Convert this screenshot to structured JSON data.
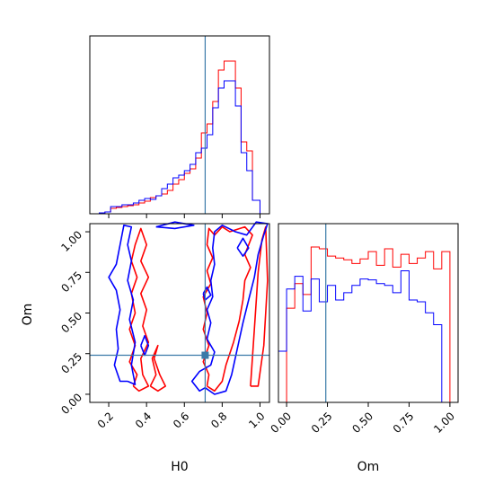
{
  "colors": {
    "series_1": "#ff0000",
    "series_2": "#0000ff",
    "truth": "#3a7aa8"
  },
  "chart_data": {
    "type": "corner",
    "parameters": [
      "H0",
      "Om"
    ],
    "truth": {
      "H0": 0.71,
      "Om": 0.24
    },
    "axes": {
      "H0": {
        "xlim": [
          0.1,
          1.05
        ],
        "ticks": [
          0.2,
          0.4,
          0.6,
          0.8,
          1.0
        ],
        "tick_labels": [
          "0.2",
          "0.4",
          "0.6",
          "0.8",
          "1.0"
        ],
        "xlabel": "H0"
      },
      "Om": {
        "lim": [
          -0.05,
          1.05
        ],
        "ticks": [
          0.0,
          0.25,
          0.5,
          0.75,
          1.0
        ],
        "tick_labels": [
          "0.00",
          "0.25",
          "0.50",
          "0.75",
          "1.00"
        ],
        "xlabel": "Om",
        "ylabel": "Om"
      }
    },
    "histograms": {
      "H0": {
        "bin_edges": [
          0.1,
          0.15,
          0.18,
          0.21,
          0.24,
          0.27,
          0.3,
          0.33,
          0.36,
          0.39,
          0.42,
          0.45,
          0.48,
          0.51,
          0.54,
          0.57,
          0.6,
          0.63,
          0.66,
          0.69,
          0.72,
          0.75,
          0.78,
          0.81,
          0.84,
          0.87,
          0.9,
          0.93,
          0.96,
          1.0,
          1.05
        ],
        "series": [
          {
            "name": "",
            "color": "red",
            "values": [
              0,
              1,
              2,
              6,
              7,
              8,
              9,
              10,
              12,
              14,
              18,
              20,
              22,
              26,
              33,
              38,
              45,
              50,
              62,
              90,
              100,
              125,
              160,
              170,
              170,
              140,
              80,
              70,
              15,
              0
            ]
          },
          {
            "name": "",
            "color": "blue",
            "values": [
              0,
              1,
              2,
              8,
              8,
              10,
              10,
              12,
              15,
              17,
              16,
              20,
              28,
              33,
              40,
              43,
              48,
              55,
              68,
              73,
              88,
              118,
              140,
              148,
              148,
              120,
              68,
              48,
              15,
              0
            ]
          }
        ]
      },
      "Om": {
        "bin_edges": [
          -0.05,
          0.0,
          0.05,
          0.1,
          0.15,
          0.2,
          0.25,
          0.3,
          0.35,
          0.4,
          0.45,
          0.5,
          0.55,
          0.6,
          0.65,
          0.7,
          0.75,
          0.8,
          0.85,
          0.9,
          0.95,
          1.0,
          1.05
        ],
        "series": [
          {
            "name": "",
            "color": "red",
            "values": [
              0,
              103,
              130,
              118,
              170,
              168,
              160,
              158,
              156,
              152,
              157,
              165,
              150,
              168,
              148,
              162,
              152,
              158,
              165,
              146,
              165,
              0
            ]
          },
          {
            "name": "",
            "color": "blue",
            "values": [
              56,
              124,
              138,
              100,
              135,
              110,
              128,
              112,
              120,
              128,
              135,
              134,
              130,
              128,
              120,
              144,
              112,
              110,
              98,
              85,
              0,
              0
            ]
          }
        ]
      }
    },
    "contours_H0_Om": [
      {
        "color": "red",
        "points": [
          [
            0.33,
            0.05
          ],
          [
            0.36,
            0.02
          ],
          [
            0.41,
            0.05
          ],
          [
            0.38,
            0.12
          ],
          [
            0.37,
            0.22
          ],
          [
            0.41,
            0.32
          ],
          [
            0.38,
            0.42
          ],
          [
            0.4,
            0.52
          ],
          [
            0.37,
            0.62
          ],
          [
            0.41,
            0.72
          ],
          [
            0.37,
            0.82
          ],
          [
            0.4,
            0.92
          ],
          [
            0.37,
            1.02
          ],
          [
            0.34,
            0.92
          ],
          [
            0.32,
            0.82
          ],
          [
            0.35,
            0.72
          ],
          [
            0.32,
            0.62
          ],
          [
            0.34,
            0.5
          ],
          [
            0.31,
            0.4
          ],
          [
            0.34,
            0.3
          ],
          [
            0.31,
            0.2
          ],
          [
            0.35,
            0.12
          ],
          [
            0.33,
            0.05
          ]
        ]
      },
      {
        "color": "red",
        "points": [
          [
            0.42,
            0.05
          ],
          [
            0.46,
            0.02
          ],
          [
            0.5,
            0.05
          ],
          [
            0.47,
            0.12
          ],
          [
            0.44,
            0.22
          ],
          [
            0.46,
            0.3
          ],
          [
            0.43,
            0.22
          ],
          [
            0.45,
            0.12
          ],
          [
            0.42,
            0.05
          ]
        ]
      },
      {
        "color": "red",
        "points": [
          [
            0.72,
            0.05
          ],
          [
            0.76,
            0.02
          ],
          [
            0.8,
            0.08
          ],
          [
            0.82,
            0.18
          ],
          [
            0.86,
            0.32
          ],
          [
            0.89,
            0.45
          ],
          [
            0.91,
            0.58
          ],
          [
            0.92,
            0.7
          ],
          [
            0.95,
            0.78
          ],
          [
            0.92,
            0.86
          ],
          [
            0.96,
            0.98
          ],
          [
            0.92,
            1.03
          ],
          [
            0.84,
            1.0
          ],
          [
            0.8,
            1.03
          ],
          [
            0.76,
            0.98
          ],
          [
            0.73,
            1.02
          ],
          [
            0.72,
            0.92
          ],
          [
            0.75,
            0.84
          ],
          [
            0.72,
            0.76
          ],
          [
            0.74,
            0.68
          ],
          [
            0.7,
            0.6
          ],
          [
            0.72,
            0.5
          ],
          [
            0.7,
            0.4
          ],
          [
            0.73,
            0.3
          ],
          [
            0.7,
            0.2
          ],
          [
            0.73,
            0.12
          ],
          [
            0.72,
            0.05
          ]
        ]
      },
      {
        "color": "red",
        "points": [
          [
            0.95,
            0.05
          ],
          [
            0.97,
            0.4
          ],
          [
            0.99,
            0.75
          ],
          [
            1.01,
            0.95
          ],
          [
            1.03,
            1.03
          ],
          [
            1.04,
            0.7
          ],
          [
            1.02,
            0.3
          ],
          [
            0.99,
            0.05
          ],
          [
            0.95,
            0.05
          ]
        ]
      },
      {
        "color": "blue",
        "points": [
          [
            0.3,
            0.08
          ],
          [
            0.34,
            0.06
          ],
          [
            0.32,
            0.18
          ],
          [
            0.34,
            0.32
          ],
          [
            0.31,
            0.46
          ],
          [
            0.33,
            0.58
          ],
          [
            0.3,
            0.7
          ],
          [
            0.32,
            0.82
          ],
          [
            0.3,
            0.92
          ],
          [
            0.32,
            1.03
          ],
          [
            0.28,
            1.04
          ],
          [
            0.26,
            0.92
          ],
          [
            0.24,
            0.8
          ],
          [
            0.2,
            0.72
          ],
          [
            0.24,
            0.64
          ],
          [
            0.26,
            0.52
          ],
          [
            0.24,
            0.4
          ],
          [
            0.25,
            0.28
          ],
          [
            0.23,
            0.18
          ],
          [
            0.26,
            0.08
          ],
          [
            0.3,
            0.08
          ]
        ]
      },
      {
        "color": "blue",
        "points": [
          [
            0.37,
            0.3
          ],
          [
            0.39,
            0.24
          ],
          [
            0.41,
            0.3
          ],
          [
            0.39,
            0.36
          ],
          [
            0.37,
            0.3
          ]
        ]
      },
      {
        "color": "blue",
        "points": [
          [
            0.45,
            1.03
          ],
          [
            0.55,
            1.06
          ],
          [
            0.65,
            1.04
          ],
          [
            0.55,
            1.02
          ],
          [
            0.45,
            1.03
          ]
        ]
      },
      {
        "color": "blue",
        "points": [
          [
            0.71,
            0.04
          ],
          [
            0.76,
            0.0
          ],
          [
            0.82,
            0.02
          ],
          [
            0.85,
            0.12
          ],
          [
            0.88,
            0.28
          ],
          [
            0.91,
            0.44
          ],
          [
            0.94,
            0.58
          ],
          [
            0.97,
            0.72
          ],
          [
            0.99,
            0.86
          ],
          [
            1.02,
            0.98
          ],
          [
            1.04,
            1.05
          ],
          [
            0.98,
            1.06
          ],
          [
            0.93,
            0.98
          ],
          [
            0.87,
            1.0
          ],
          [
            0.8,
            1.04
          ],
          [
            0.76,
            1.0
          ],
          [
            0.75,
            0.9
          ],
          [
            0.76,
            0.8
          ],
          [
            0.74,
            0.7
          ],
          [
            0.75,
            0.6
          ],
          [
            0.72,
            0.52
          ],
          [
            0.74,
            0.44
          ],
          [
            0.72,
            0.34
          ],
          [
            0.76,
            0.26
          ],
          [
            0.74,
            0.18
          ],
          [
            0.68,
            0.14
          ],
          [
            0.64,
            0.08
          ],
          [
            0.68,
            0.02
          ],
          [
            0.71,
            0.04
          ]
        ]
      },
      {
        "color": "blue",
        "points": [
          [
            0.7,
            0.62
          ],
          [
            0.72,
            0.66
          ],
          [
            0.74,
            0.61
          ],
          [
            0.71,
            0.58
          ],
          [
            0.7,
            0.62
          ]
        ]
      },
      {
        "color": "blue",
        "points": [
          [
            0.88,
            0.9
          ],
          [
            0.91,
            0.96
          ],
          [
            0.94,
            0.9
          ],
          [
            0.91,
            0.85
          ],
          [
            0.88,
            0.9
          ]
        ]
      }
    ]
  }
}
